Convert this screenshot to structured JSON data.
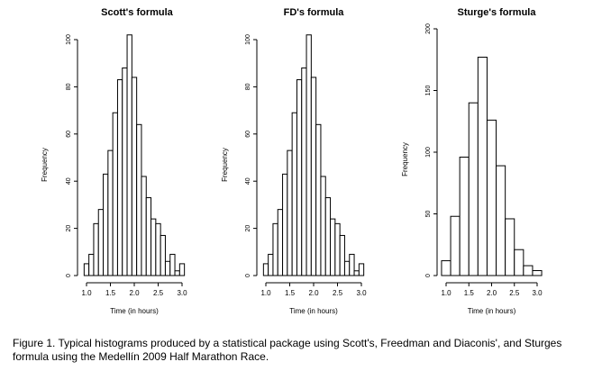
{
  "chart_data": [
    {
      "type": "bar",
      "title": "Scott's formula",
      "xlabel": "Time (in hours)",
      "ylabel": "Frequency",
      "xlim": [
        0.95,
        3.1
      ],
      "ylim": [
        0,
        100
      ],
      "xticks": [
        "1.0",
        "1.5",
        "2.0",
        "2.5",
        "3.0"
      ],
      "yticks": [
        "0",
        "20",
        "40",
        "60",
        "80",
        "100"
      ],
      "bin_start": 0.95,
      "bin_width": 0.1,
      "values": [
        5,
        9,
        22,
        28,
        43,
        53,
        69,
        83,
        88,
        102,
        84,
        64,
        42,
        33,
        24,
        22,
        17,
        6,
        9,
        2,
        5
      ],
      "grid": false
    },
    {
      "type": "bar",
      "title": "FD's formula",
      "xlabel": "Time (in hours)",
      "ylabel": "Frequency",
      "xlim": [
        0.95,
        3.1
      ],
      "ylim": [
        0,
        100
      ],
      "xticks": [
        "1.0",
        "1.5",
        "2.0",
        "2.5",
        "3.0"
      ],
      "yticks": [
        "0",
        "20",
        "40",
        "60",
        "80",
        "100"
      ],
      "bin_start": 0.95,
      "bin_width": 0.1,
      "values": [
        5,
        9,
        22,
        28,
        43,
        53,
        69,
        83,
        88,
        102,
        84,
        64,
        42,
        33,
        24,
        22,
        17,
        6,
        9,
        2,
        5
      ],
      "grid": false
    },
    {
      "type": "bar",
      "title": "Sturge's formula",
      "xlabel": "Time (in hours)",
      "ylabel": "Frequency",
      "xlim": [
        0.9,
        3.1
      ],
      "ylim": [
        0,
        200
      ],
      "xticks": [
        "1.0",
        "1.5",
        "2.0",
        "2.5",
        "3.0"
      ],
      "yticks": [
        "0",
        "50",
        "100",
        "150",
        "200"
      ],
      "bin_start": 0.9,
      "bin_width": 0.2,
      "values": [
        12,
        48,
        96,
        140,
        177,
        126,
        89,
        46,
        21,
        8,
        4
      ],
      "grid": false
    }
  ],
  "caption": "Figure 1. Typical histograms produced by a statistical package using Scott's, Freedman and Diaconis', and Sturges formula using the Medellín 2009 Half Marathon Race."
}
